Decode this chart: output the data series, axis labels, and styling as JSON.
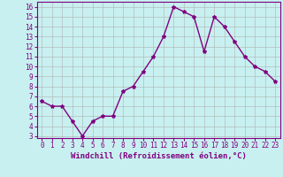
{
  "x": [
    0,
    1,
    2,
    3,
    4,
    5,
    6,
    7,
    8,
    9,
    10,
    11,
    12,
    13,
    14,
    15,
    16,
    17,
    18,
    19,
    20,
    21,
    22,
    23
  ],
  "y": [
    6.5,
    6.0,
    6.0,
    4.5,
    3.0,
    4.5,
    5.0,
    5.0,
    7.5,
    8.0,
    9.5,
    11.0,
    13.0,
    16.0,
    15.5,
    15.0,
    11.5,
    15.0,
    14.0,
    12.5,
    11.0,
    10.0,
    9.5,
    8.5
  ],
  "line_color": "#800080",
  "marker": "*",
  "marker_color": "#800080",
  "marker_size": 3,
  "linewidth": 1.0,
  "background_color": "#c8f0f0",
  "grid_color": "#b0b0b0",
  "xlabel": "Windchill (Refroidissement éolien,°C)",
  "xlabel_fontsize": 6.5,
  "xlim": [
    -0.5,
    23.5
  ],
  "ylim": [
    2.8,
    16.5
  ],
  "yticks": [
    3,
    4,
    5,
    6,
    7,
    8,
    9,
    10,
    11,
    12,
    13,
    14,
    15,
    16
  ],
  "xticks": [
    0,
    1,
    2,
    3,
    4,
    5,
    6,
    7,
    8,
    9,
    10,
    11,
    12,
    13,
    14,
    15,
    16,
    17,
    18,
    19,
    20,
    21,
    22,
    23
  ],
  "tick_fontsize": 5.5,
  "spine_color": "#800080"
}
